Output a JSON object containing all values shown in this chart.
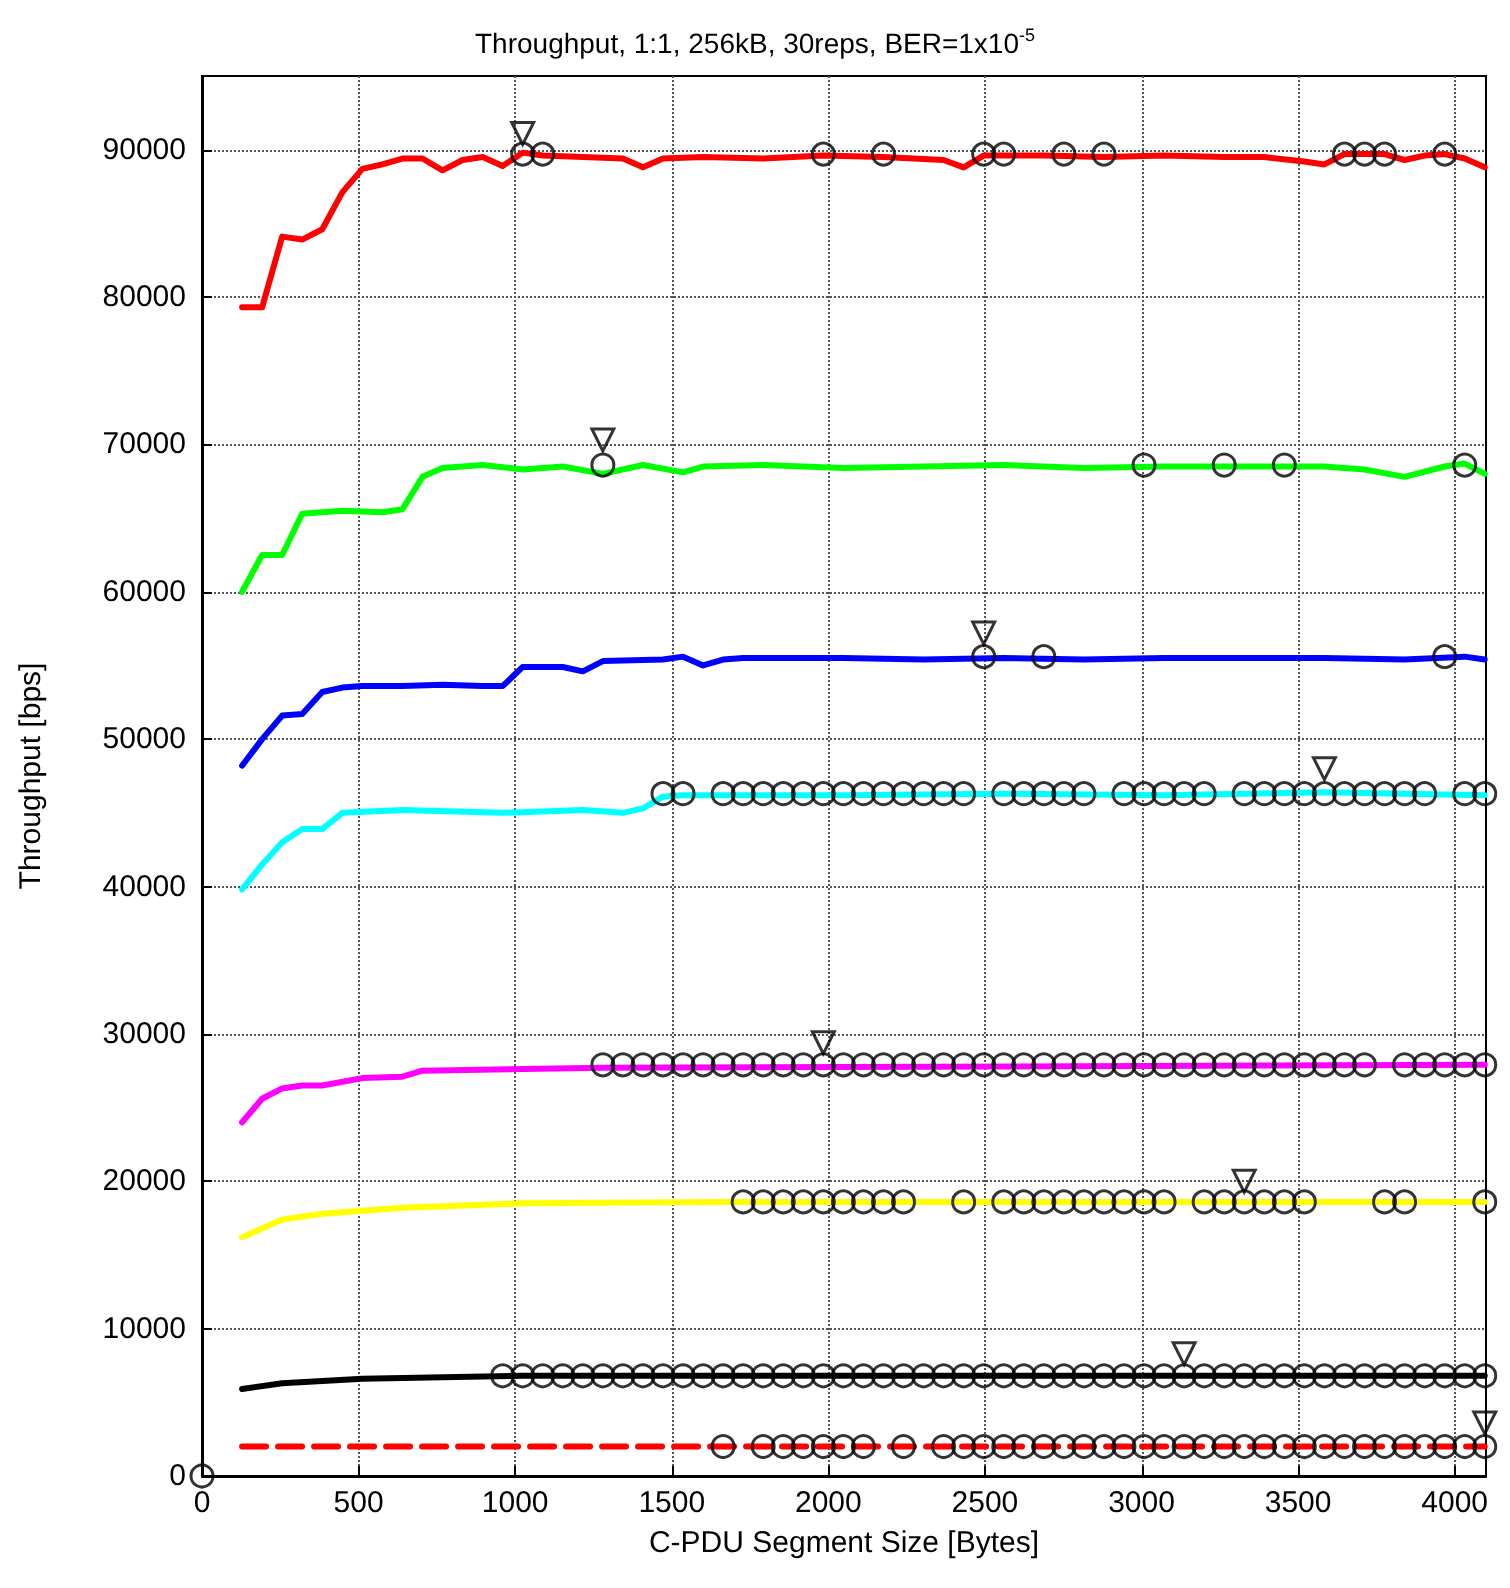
{
  "chart_data": {
    "type": "line",
    "title": "Throughput, 1:1, 256kB, 30reps, BER=1x10$^{-5}$",
    "xlabel": "C-PDU Segment Size [Bytes]",
    "ylabel": "Throughput [bps]",
    "xlim": [
      0,
      4100
    ],
    "xticks": [
      0,
      500,
      1000,
      1500,
      2000,
      2500,
      3000,
      3500,
      4000
    ],
    "ylim": [
      0,
      95000
    ],
    "yticks": [
      0,
      10000,
      20000,
      30000,
      40000,
      50000,
      60000,
      70000,
      80000,
      90000
    ],
    "grid": true,
    "series": [
      {
        "color": "#ff0000",
        "line_style": "solid",
        "x": [
          128,
          192,
          256,
          320,
          384,
          448,
          512,
          576,
          640,
          704,
          768,
          832,
          896,
          960,
          1024,
          1088,
          1216,
          1344,
          1408,
          1472,
          1600,
          1792,
          1984,
          2176,
          2368,
          2432,
          2496,
          2688,
          2880,
          3072,
          3264,
          3392,
          3520,
          3584,
          3648,
          3776,
          3840,
          3904,
          3968,
          4032,
          4096
        ],
        "values": [
          79300,
          79300,
          84100,
          83900,
          84600,
          87100,
          88700,
          89000,
          89400,
          89400,
          88600,
          89300,
          89500,
          88900,
          89800,
          89600,
          89500,
          89400,
          88800,
          89400,
          89500,
          89400,
          89600,
          89500,
          89300,
          88800,
          89600,
          89600,
          89500,
          89600,
          89500,
          89500,
          89200,
          89000,
          89700,
          89700,
          89300,
          89600,
          89700,
          89400,
          88800
        ]
      },
      {
        "color": "#00ff00",
        "line_style": "solid",
        "x": [
          128,
          192,
          256,
          320,
          448,
          576,
          640,
          704,
          768,
          896,
          1024,
          1152,
          1280,
          1408,
          1536,
          1600,
          1792,
          2048,
          2304,
          2560,
          2816,
          3072,
          3328,
          3584,
          3712,
          3840,
          3968,
          4032,
          4096
        ],
        "values": [
          60000,
          62500,
          62500,
          65300,
          65500,
          65400,
          65600,
          67800,
          68400,
          68600,
          68300,
          68500,
          68000,
          68600,
          68100,
          68500,
          68600,
          68400,
          68500,
          68600,
          68400,
          68500,
          68500,
          68500,
          68300,
          67800,
          68500,
          68700,
          68000
        ]
      },
      {
        "color": "#0000ff",
        "line_style": "solid",
        "x": [
          128,
          192,
          256,
          320,
          384,
          448,
          512,
          640,
          768,
          896,
          960,
          1024,
          1152,
          1216,
          1280,
          1472,
          1536,
          1600,
          1664,
          1728,
          2048,
          2304,
          2560,
          2816,
          3072,
          3328,
          3584,
          3840,
          4032,
          4096
        ],
        "values": [
          48200,
          50000,
          51600,
          51700,
          53200,
          53500,
          53600,
          53600,
          53700,
          53600,
          53600,
          54900,
          54900,
          54600,
          55300,
          55400,
          55600,
          55000,
          55400,
          55500,
          55500,
          55400,
          55500,
          55400,
          55500,
          55500,
          55500,
          55400,
          55600,
          55400
        ]
      },
      {
        "color": "#00ffff",
        "line_style": "solid",
        "x": [
          128,
          192,
          256,
          320,
          384,
          448,
          640,
          960,
          1216,
          1344,
          1408,
          1472,
          1536,
          2048,
          2560,
          3072,
          3584,
          4096
        ],
        "values": [
          39800,
          41500,
          43000,
          43900,
          43900,
          45000,
          45200,
          45000,
          45200,
          45000,
          45300,
          46100,
          46200,
          46200,
          46300,
          46200,
          46400,
          46200
        ]
      },
      {
        "color": "#ff00ff",
        "line_style": "solid",
        "x": [
          128,
          192,
          256,
          320,
          384,
          512,
          640,
          704,
          1280,
          4096
        ],
        "values": [
          24000,
          25600,
          26300,
          26500,
          26500,
          27000,
          27100,
          27500,
          27700,
          27900
        ]
      },
      {
        "color": "#ffff00",
        "line_style": "solid",
        "x": [
          128,
          256,
          384,
          512,
          640,
          1024,
          1664,
          4096
        ],
        "values": [
          16200,
          17400,
          17800,
          18000,
          18200,
          18500,
          18600,
          18600
        ]
      },
      {
        "color": "#000000",
        "line_style": "solid",
        "x": [
          128,
          256,
          512,
          1024,
          4096
        ],
        "values": [
          5900,
          6300,
          6600,
          6800,
          6800
        ]
      },
      {
        "color": "#ff0000",
        "line_style": "dashed",
        "x": [
          128,
          4096
        ],
        "values": [
          2000,
          2000
        ]
      },
      {
        "type": "scatter",
        "color": "#000000",
        "marker": "circle",
        "x": [
          1024,
          1088,
          1984,
          2176,
          2496,
          2560,
          2752,
          2880,
          3648,
          3712,
          3776,
          3968
        ],
        "values": [
          89700,
          89700,
          89700,
          89700,
          89700,
          89700,
          89700,
          89700,
          89700,
          89700,
          89700,
          89700
        ]
      },
      {
        "type": "scatter",
        "color": "#000000",
        "marker": "circle",
        "x": [
          1280,
          3008,
          3264,
          3456,
          4032
        ],
        "values": [
          68600,
          68600,
          68600,
          68600,
          68600
        ]
      },
      {
        "type": "scatter",
        "color": "#000000",
        "marker": "circle",
        "x": [
          2496,
          2688,
          3968
        ],
        "values": [
          55600,
          55600,
          55600
        ]
      },
      {
        "type": "scatter",
        "color": "#000000",
        "marker": "circle",
        "x": [
          1472,
          1536,
          1664,
          1728,
          1792,
          1856,
          1920,
          1984,
          2048,
          2112,
          2176,
          2240,
          2304,
          2368,
          2432,
          2560,
          2624,
          2688,
          2752,
          2816,
          2944,
          3008,
          3072,
          3136,
          3200,
          3328,
          3392,
          3456,
          3520,
          3584,
          3648,
          3712,
          3776,
          3840,
          3904,
          4032,
          4096
        ],
        "values": [
          46300,
          46300,
          46300,
          46300,
          46300,
          46300,
          46300,
          46300,
          46300,
          46300,
          46300,
          46300,
          46300,
          46300,
          46300,
          46300,
          46300,
          46300,
          46300,
          46300,
          46300,
          46300,
          46300,
          46300,
          46300,
          46300,
          46300,
          46300,
          46300,
          46300,
          46300,
          46300,
          46300,
          46300,
          46300,
          46300,
          46300
        ]
      },
      {
        "type": "scatter",
        "color": "#000000",
        "marker": "circle",
        "x": [
          1280,
          1344,
          1408,
          1472,
          1536,
          1600,
          1664,
          1728,
          1792,
          1856,
          1920,
          1984,
          2048,
          2112,
          2176,
          2240,
          2304,
          2368,
          2432,
          2496,
          2560,
          2624,
          2688,
          2752,
          2816,
          2880,
          2944,
          3008,
          3072,
          3136,
          3200,
          3264,
          3328,
          3392,
          3456,
          3520,
          3584,
          3648,
          3712,
          3840,
          3904,
          3968,
          4032,
          4096
        ],
        "values": [
          27900,
          27900,
          27900,
          27900,
          27900,
          27900,
          27900,
          27900,
          27900,
          27900,
          27900,
          27900,
          27900,
          27900,
          27900,
          27900,
          27900,
          27900,
          27900,
          27900,
          27900,
          27900,
          27900,
          27900,
          27900,
          27900,
          27900,
          27900,
          27900,
          27900,
          27900,
          27900,
          27900,
          27900,
          27900,
          27900,
          27900,
          27900,
          27900,
          27900,
          27900,
          27900,
          27900,
          27900
        ]
      },
      {
        "type": "scatter",
        "color": "#000000",
        "marker": "circle",
        "x": [
          1728,
          1792,
          1856,
          1920,
          1984,
          2048,
          2112,
          2176,
          2240,
          2432,
          2560,
          2624,
          2688,
          2752,
          2816,
          2880,
          2944,
          3008,
          3072,
          3200,
          3264,
          3328,
          3392,
          3456,
          3520,
          3776,
          3840,
          4096
        ],
        "values": [
          18600,
          18600,
          18600,
          18600,
          18600,
          18600,
          18600,
          18600,
          18600,
          18600,
          18600,
          18600,
          18600,
          18600,
          18600,
          18600,
          18600,
          18600,
          18600,
          18600,
          18600,
          18600,
          18600,
          18600,
          18600,
          18600,
          18600,
          18600
        ]
      },
      {
        "type": "scatter",
        "color": "#000000",
        "marker": "circle",
        "x": [
          960,
          1024,
          1088,
          1152,
          1216,
          1280,
          1344,
          1408,
          1472,
          1536,
          1600,
          1664,
          1728,
          1792,
          1856,
          1920,
          1984,
          2048,
          2112,
          2176,
          2240,
          2304,
          2368,
          2432,
          2496,
          2560,
          2624,
          2688,
          2752,
          2816,
          2880,
          2944,
          3008,
          3072,
          3136,
          3200,
          3264,
          3328,
          3392,
          3456,
          3520,
          3584,
          3648,
          3712,
          3776,
          3840,
          3904,
          3968,
          4032,
          4096
        ],
        "values": [
          6800,
          6800,
          6800,
          6800,
          6800,
          6800,
          6800,
          6800,
          6800,
          6800,
          6800,
          6800,
          6800,
          6800,
          6800,
          6800,
          6800,
          6800,
          6800,
          6800,
          6800,
          6800,
          6800,
          6800,
          6800,
          6800,
          6800,
          6800,
          6800,
          6800,
          6800,
          6800,
          6800,
          6800,
          6800,
          6800,
          6800,
          6800,
          6800,
          6800,
          6800,
          6800,
          6800,
          6800,
          6800,
          6800,
          6800,
          6800,
          6800,
          6800
        ]
      },
      {
        "type": "scatter",
        "color": "#000000",
        "marker": "circle",
        "x": [
          1664,
          1792,
          1856,
          1920,
          1984,
          2048,
          2112,
          2240,
          2368,
          2432,
          2496,
          2560,
          2624,
          2688,
          2752,
          2816,
          2880,
          2944,
          3008,
          3072,
          3136,
          3200,
          3264,
          3328,
          3392,
          3456,
          3520,
          3584,
          3648,
          3712,
          3776,
          3840,
          3904,
          3968,
          4032,
          4096
        ],
        "values": [
          2000,
          2000,
          2000,
          2000,
          2000,
          2000,
          2000,
          2000,
          2000,
          2000,
          2000,
          2000,
          2000,
          2000,
          2000,
          2000,
          2000,
          2000,
          2000,
          2000,
          2000,
          2000,
          2000,
          2000,
          2000,
          2000,
          2000,
          2000,
          2000,
          2000,
          2000,
          2000,
          2000,
          2000,
          2000,
          2000
        ]
      },
      {
        "type": "scatter",
        "color": "#000000",
        "marker": "circle",
        "x": [
          0
        ],
        "values": [
          0
        ]
      },
      {
        "type": "scatter",
        "color": "#000000",
        "marker": "triangle",
        "x": [
          1024,
          1280,
          2496,
          3584,
          1984,
          3328,
          3136,
          4096
        ],
        "values": [
          91100,
          70300,
          57200,
          48000,
          29400,
          20000,
          8300,
          3600
        ]
      }
    ]
  }
}
